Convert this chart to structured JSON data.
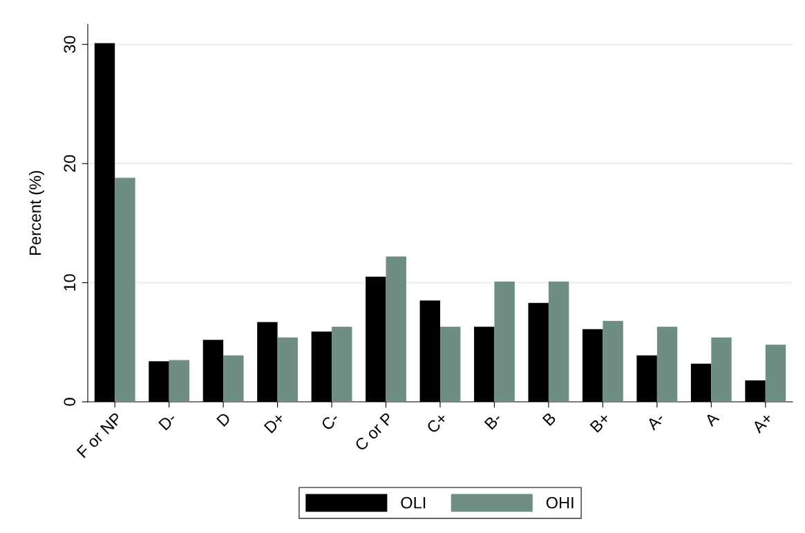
{
  "chart_data": {
    "type": "bar",
    "ylabel": "Percent (%)",
    "categories": [
      "F or NP",
      "D-",
      "D",
      "D+",
      "C-",
      "C or P",
      "C+",
      "B-",
      "B",
      "B+",
      "A-",
      "A",
      "A+"
    ],
    "series": [
      {
        "name": "OLI",
        "color": "#000000",
        "values": [
          30.1,
          3.4,
          5.2,
          6.7,
          5.9,
          10.5,
          8.5,
          6.3,
          8.3,
          6.1,
          3.9,
          3.2,
          1.8
        ]
      },
      {
        "name": "OHI",
        "color": "#6f8e82",
        "values": [
          18.8,
          3.5,
          3.9,
          5.4,
          6.3,
          12.2,
          6.3,
          10.1,
          10.1,
          6.8,
          6.3,
          5.4,
          4.8
        ]
      }
    ],
    "ylim": [
      0,
      31.7
    ],
    "yticks": [
      0,
      10,
      20,
      30
    ],
    "grid": "y",
    "legend": "bottom"
  }
}
